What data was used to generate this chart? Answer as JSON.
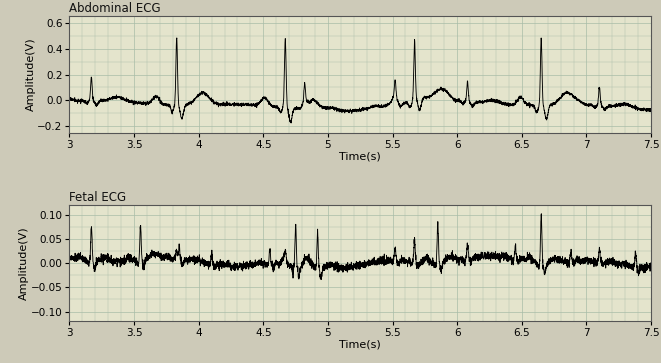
{
  "title1": "Abdominal ECG",
  "title2": "Fetal ECG",
  "xlabel": "Time(s)",
  "ylabel": "Amplitude(V)",
  "xlim": [
    3,
    7.5
  ],
  "ylim1": [
    -0.25,
    0.65
  ],
  "ylim2": [
    -0.12,
    0.12
  ],
  "yticks1": [
    -0.2,
    0.0,
    0.2,
    0.4,
    0.6
  ],
  "yticks2": [
    -0.1,
    -0.05,
    0.0,
    0.05,
    0.1
  ],
  "xticks": [
    3.0,
    3.5,
    4.0,
    4.5,
    5.0,
    5.5,
    6.0,
    6.5,
    7.0,
    7.5
  ],
  "bg_color": "#cdcab8",
  "plot_bg": "#e4e4cc",
  "grid_color": "#a8bca8",
  "line_color": "#000000",
  "line_width": 0.65,
  "maternal_beats": [
    3.17,
    3.83,
    4.67,
    4.82,
    5.52,
    5.67,
    6.08,
    6.65,
    7.1
  ],
  "maternal_amps": [
    0.18,
    0.52,
    0.52,
    0.15,
    0.14,
    0.46,
    0.15,
    0.52,
    0.14
  ],
  "fetal_beats": [
    3.17,
    3.55,
    3.85,
    4.1,
    4.55,
    4.75,
    4.92,
    5.52,
    5.67,
    5.85,
    6.08,
    6.45,
    6.65,
    6.88,
    7.1,
    7.38
  ],
  "fetal_amps": [
    0.065,
    0.068,
    0.025,
    0.022,
    0.03,
    0.082,
    0.075,
    0.022,
    0.028,
    0.078,
    0.022,
    0.028,
    0.075,
    0.02,
    0.022,
    0.03
  ],
  "sample_rate": 1000
}
